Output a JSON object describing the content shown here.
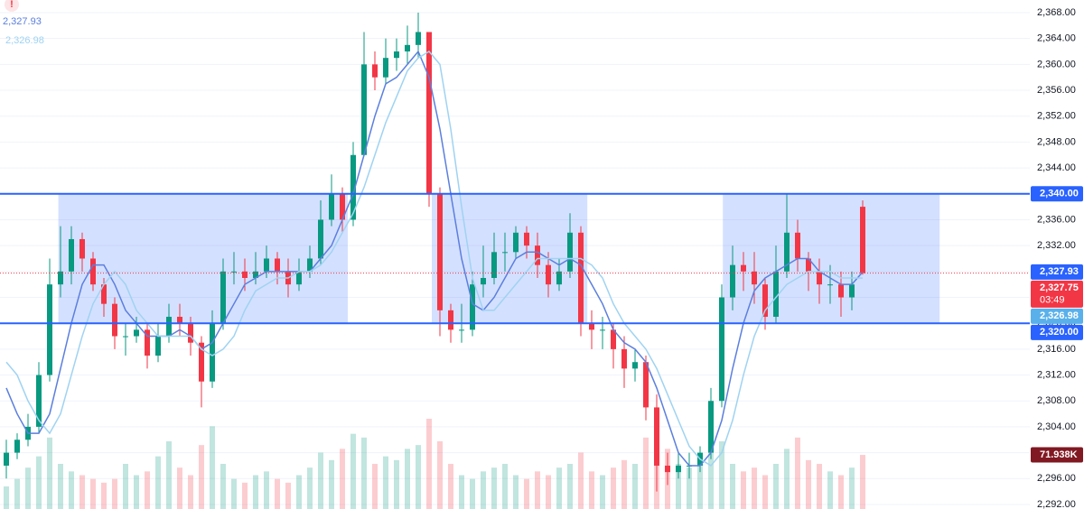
{
  "chart_data": {
    "type": "candlestick",
    "alert": "!",
    "up_color": "#089981",
    "down_color": "#f23645",
    "ylim": [
      2291.3,
      2369.95
    ],
    "yticks": [
      {
        "value": 2292,
        "label": "2,292.00"
      },
      {
        "value": 2296,
        "label": "2,296.00"
      },
      {
        "value": 2300,
        "label": "2,300.00"
      },
      {
        "value": 2304,
        "label": "2,304.00"
      },
      {
        "value": 2308,
        "label": "2,308.00"
      },
      {
        "value": 2312,
        "label": "2,312.00"
      },
      {
        "value": 2316,
        "label": "2,316.00"
      },
      {
        "value": 2320,
        "label": "2,320.00"
      },
      {
        "value": 2324,
        "label": "2,324.00"
      },
      {
        "value": 2328,
        "label": "2,328.00"
      },
      {
        "value": 2332,
        "label": "2,332.00"
      },
      {
        "value": 2336,
        "label": "2,336.00"
      },
      {
        "value": 2340,
        "label": "2,340.00"
      },
      {
        "value": 2344,
        "label": "2,344.00"
      },
      {
        "value": 2348,
        "label": "2,348.00"
      },
      {
        "value": 2352,
        "label": "2,352.00"
      },
      {
        "value": 2356,
        "label": "2,356.00"
      },
      {
        "value": 2360,
        "label": "2,360.00"
      },
      {
        "value": 2364,
        "label": "2,364.00"
      },
      {
        "value": 2368,
        "label": "2,368.00"
      }
    ],
    "grid": true,
    "open": [
      2298,
      2300,
      2302,
      2304,
      2312,
      2326,
      2328,
      2333,
      2330,
      2326,
      2323,
      2318,
      2318,
      2319,
      2315,
      2318,
      2321,
      2320,
      2317,
      2311,
      2320,
      2328,
      2328,
      2327,
      2328,
      2330,
      2328,
      2326,
      2328,
      2330,
      2336,
      2340,
      2336,
      2346,
      2360,
      2358,
      2361,
      2362,
      2363,
      2365,
      2340,
      2322,
      2319,
      2319,
      2326,
      2327,
      2331,
      2331,
      2334,
      2332,
      2329,
      2326,
      2328,
      2334,
      2320,
      2319,
      2319,
      2316,
      2313,
      2314,
      2307,
      2298,
      2297,
      2298,
      2298,
      2300,
      2308,
      2324,
      2329,
      2328,
      2326,
      2321,
      2328,
      2334,
      2330,
      2328,
      2326,
      2326,
      2324,
      2338
    ],
    "high": [
      2302,
      2303,
      2306,
      2314,
      2330,
      2335,
      2335,
      2334,
      2331,
      2327,
      2324,
      2320,
      2321,
      2320,
      2320,
      2323,
      2323,
      2321,
      2318,
      2322,
      2330,
      2331,
      2330,
      2331,
      2332,
      2331,
      2330,
      2330,
      2332,
      2339,
      2343,
      2341,
      2348,
      2365,
      2362,
      2364,
      2364,
      2366,
      2368,
      2365,
      2341,
      2323,
      2323,
      2328,
      2332,
      2334,
      2334,
      2335,
      2335,
      2334,
      2331,
      2330,
      2337,
      2335,
      2322,
      2321,
      2320,
      2318,
      2316,
      2315,
      2309,
      2300,
      2300,
      2300,
      2301,
      2310,
      2326,
      2332,
      2331,
      2331,
      2327,
      2332,
      2340,
      2336,
      2331,
      2330,
      2329,
      2328,
      2328,
      2339
    ],
    "low": [
      2296,
      2299,
      2301,
      2303,
      2311,
      2324,
      2326,
      2328,
      2325,
      2321,
      2316,
      2315,
      2317,
      2313,
      2314,
      2317,
      2318,
      2315,
      2307,
      2310,
      2319,
      2326,
      2325,
      2326,
      2327,
      2326,
      2324,
      2325,
      2327,
      2329,
      2335,
      2334,
      2335,
      2346,
      2356,
      2357,
      2359,
      2360,
      2361,
      2338,
      2318,
      2317,
      2317,
      2318,
      2324,
      2326,
      2328,
      2330,
      2330,
      2327,
      2324,
      2325,
      2327,
      2318,
      2316,
      2316,
      2313,
      2310,
      2311,
      2305,
      2294,
      2295,
      2296,
      2296,
      2297,
      2299,
      2307,
      2322,
      2325,
      2323,
      2319,
      2320,
      2327,
      2328,
      2325,
      2323,
      2323,
      2321,
      2322,
      2327.5
    ],
    "close": [
      2300,
      2302,
      2304,
      2312,
      2326,
      2328,
      2333,
      2330,
      2326,
      2323,
      2318,
      2318,
      2319,
      2315,
      2318,
      2321,
      2320,
      2317,
      2311,
      2320,
      2328,
      2328,
      2327,
      2328,
      2330,
      2328,
      2326,
      2328,
      2330,
      2336,
      2340,
      2336,
      2346,
      2360,
      2358,
      2361,
      2362,
      2363,
      2365,
      2340,
      2322,
      2319,
      2319,
      2326,
      2327,
      2331,
      2331,
      2334,
      2332,
      2329,
      2326,
      2328,
      2334,
      2320,
      2319,
      2319,
      2316,
      2313,
      2314,
      2307,
      2298,
      2297,
      2298,
      2298,
      2300,
      2308,
      2324,
      2329,
      2328,
      2326,
      2321,
      2328,
      2334,
      2330,
      2328,
      2326,
      2326,
      2324,
      2326,
      2327.75
    ],
    "volume": [
      30,
      40,
      55,
      70,
      95,
      60,
      50,
      45,
      40,
      35,
      40,
      60,
      45,
      50,
      70,
      90,
      55,
      45,
      85,
      110,
      60,
      40,
      35,
      45,
      50,
      40,
      35,
      45,
      55,
      75,
      65,
      80,
      100,
      95,
      60,
      70,
      65,
      80,
      85,
      120,
      90,
      60,
      45,
      40,
      50,
      55,
      60,
      45,
      40,
      50,
      45,
      55,
      60,
      75,
      50,
      45,
      55,
      65,
      60,
      95,
      100,
      80,
      60,
      55,
      70,
      85,
      90,
      60,
      50,
      55,
      45,
      60,
      80,
      95,
      65,
      60,
      50,
      45,
      55,
      71.938
    ],
    "volume_label": "71.938K",
    "series": [
      {
        "color": "#5b7fde",
        "last_label": "2,327.93",
        "values": [
          2310,
          2306,
          2303,
          2303,
          2306,
          2313,
          2320,
          2326,
          2329,
          2329,
          2326,
          2322,
          2320,
          2318,
          2318,
          2318,
          2319,
          2318,
          2316,
          2317,
          2320,
          2323,
          2326,
          2327,
          2328,
          2328,
          2328,
          2328,
          2328,
          2330,
          2332,
          2336,
          2340,
          2346,
          2352,
          2357,
          2358,
          2360,
          2362,
          2358,
          2350,
          2340,
          2330,
          2323,
          2322,
          2324,
          2327,
          2330,
          2331,
          2331,
          2330,
          2329,
          2330,
          2329,
          2326,
          2323,
          2319,
          2317,
          2316,
          2314,
          2310,
          2305,
          2300,
          2298,
          2298,
          2300,
          2305,
          2313,
          2320,
          2325,
          2327,
          2328,
          2329,
          2330,
          2330,
          2328,
          2327,
          2326,
          2326,
          2327.93
        ]
      },
      {
        "color": "#9fd3f2",
        "last_label": "2,326.98",
        "values": [
          2314,
          2312,
          2308,
          2305,
          2303,
          2306,
          2312,
          2318,
          2323,
          2326,
          2328,
          2326,
          2322,
          2320,
          2318,
          2318,
          2318,
          2318,
          2316,
          2315,
          2316,
          2318,
          2322,
          2325,
          2326,
          2327,
          2327,
          2328,
          2328,
          2329,
          2331,
          2334,
          2337,
          2341,
          2346,
          2351,
          2355,
          2359,
          2361,
          2362,
          2360,
          2350,
          2338,
          2327,
          2322,
          2322,
          2324,
          2326,
          2328,
          2330,
          2330,
          2330,
          2330,
          2330,
          2329,
          2327,
          2323,
          2320,
          2318,
          2316,
          2313,
          2309,
          2305,
          2301,
          2299,
          2298,
          2300,
          2305,
          2312,
          2318,
          2322,
          2324,
          2326,
          2327,
          2328,
          2328,
          2328,
          2327,
          2327,
          2326.98
        ]
      }
    ],
    "zones": [
      {
        "low": 2320,
        "high": 2340,
        "x0": 4.8,
        "x1": 31.5
      },
      {
        "low": 2320,
        "high": 2340,
        "x0": 39.25,
        "x1": 53.6
      },
      {
        "low": 2320,
        "high": 2340,
        "x0": 66.1,
        "x1": 86.1
      }
    ],
    "hlines": [
      2340,
      2320
    ],
    "price_labels": [
      {
        "value": 2340,
        "label": "2,340.00",
        "color": "#2962ff"
      },
      {
        "value": 2327.93,
        "label": "2,327.93",
        "color": "#2962ff"
      },
      {
        "value": 2327.75,
        "label": "2,327.75",
        "countdown": "03:49",
        "color": "#f23645"
      },
      {
        "value": 2326.98,
        "label": "2,326.98",
        "color": "#5ab0ea"
      },
      {
        "value": 2320,
        "label": "2,320.00",
        "color": "#2962ff"
      }
    ]
  }
}
